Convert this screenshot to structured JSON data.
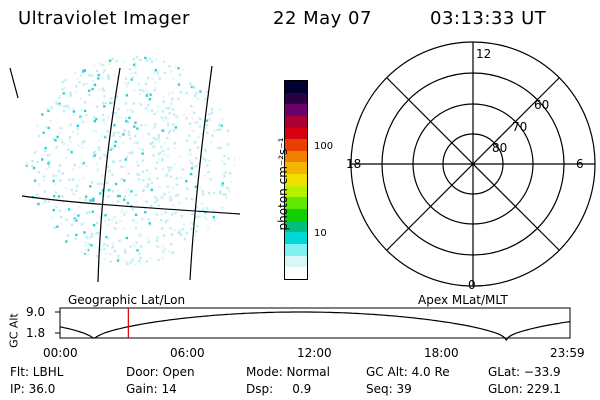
{
  "header": {
    "instrument": "Ultraviolet Imager",
    "date": "22 May 07",
    "time": "03:13:33 UT"
  },
  "geo_panel": {
    "label": "Geographic Lat/Lon"
  },
  "polar_panel": {
    "label": "Apex MLat/MLT",
    "hour_labels": {
      "top": "12",
      "left": "18",
      "right": "6",
      "bottom": "0"
    },
    "lat_labels": [
      "60",
      "70",
      "80"
    ]
  },
  "colorbar": {
    "unit_label": "photon cm⁻²s⁻¹",
    "tick_labels": [
      "100",
      "10"
    ],
    "colors": [
      "#000033",
      "#2a0040",
      "#6a006a",
      "#aa0033",
      "#d80010",
      "#e84000",
      "#f08000",
      "#f4b400",
      "#f0e000",
      "#b8f000",
      "#60e800",
      "#10d000",
      "#00c080",
      "#00d8d8",
      "#80f0f0",
      "#d8f8f8",
      "#ffffff"
    ]
  },
  "altitude_plot": {
    "ylabel": "GC Alt",
    "y_ticks": [
      "9.0",
      "1.8"
    ],
    "x_ticks": [
      "00:00",
      "06:00",
      "12:00",
      "18:00",
      "23:59"
    ],
    "current_time_fraction": 0.134,
    "marker_color": "#e00000"
  },
  "status": {
    "flt": "Flt: LBHL",
    "door": "Door: Open",
    "mode": "Mode: Normal",
    "gc_alt": "GC Alt: 4.0 Re",
    "glat": "GLat: −33.9",
    "ip": "IP: 36.0",
    "gain": "Gain: 14",
    "dsp": "Dsp:     0.9",
    "seq": "Seq: 39",
    "glon": "GLon: 229.1"
  }
}
